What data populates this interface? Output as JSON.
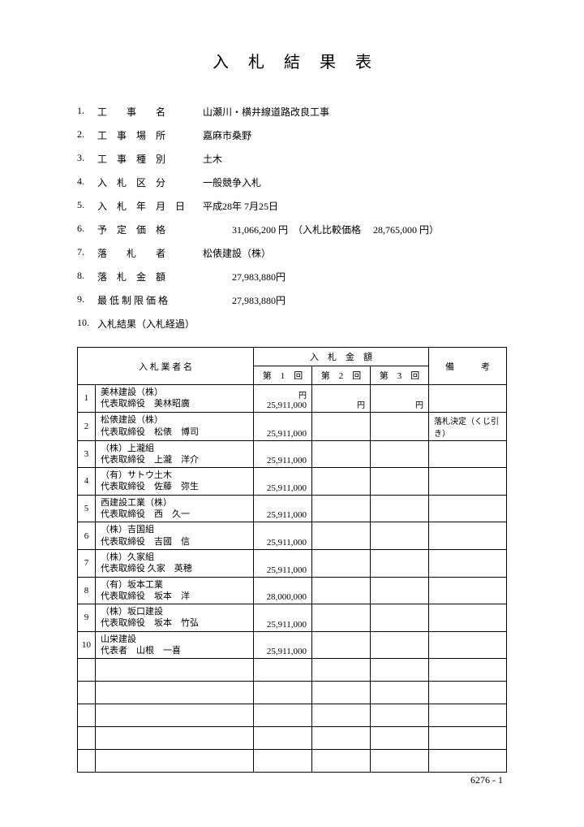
{
  "title": "入札結果表",
  "info": [
    {
      "num": "1.",
      "label": "工　　事　　名",
      "value": "山瀬川・横井線道路改良工事"
    },
    {
      "num": "2.",
      "label": "工　事　場　所",
      "value": "嘉麻市桑野"
    },
    {
      "num": "3.",
      "label": "工　事　種　別",
      "value": "土木"
    },
    {
      "num": "4.",
      "label": "入　札　区　分",
      "value": "一般競争入札"
    },
    {
      "num": "5.",
      "label": "入　札　年　月　日",
      "value": "平成28年 7月25日"
    },
    {
      "num": "6.",
      "label": "予　定　価　格",
      "value": "　　　31,066,200 円　（入札比較価格　 28,765,000 円）"
    },
    {
      "num": "7.",
      "label": "落　　札　　者",
      "value": "松俵建設（株）"
    },
    {
      "num": "8.",
      "label": "落　札　金　額",
      "value": "　　　27,983,880円"
    },
    {
      "num": "9.",
      "label": "最 低 制 限 価 格",
      "value": "　　　27,983,880円"
    },
    {
      "num": "10.",
      "label": "入札結果（入札経過）",
      "value": ""
    }
  ],
  "table": {
    "header_bidder": "入 札 業 者 名",
    "header_amount": "入　札　金　額",
    "header_round1": "第　1　回",
    "header_round2": "第　2　回",
    "header_round3": "第　3　回",
    "header_note": "備　　　考",
    "yen": "円",
    "rows": [
      {
        "n": "1",
        "b1": "美林建設（株）",
        "b2": "代表取締役　美林昭廣",
        "a1": "25,911,000",
        "note": ""
      },
      {
        "n": "2",
        "b1": "松俵建設（株）",
        "b2": "代表取締役　松俵　博司",
        "a1": "25,911,000",
        "note": "落札決定（くじ引き）"
      },
      {
        "n": "3",
        "b1": "（株）上瀧組",
        "b2": "代表取締役　上瀧　洋介",
        "a1": "25,911,000",
        "note": ""
      },
      {
        "n": "4",
        "b1": "（有）サトウ土木",
        "b2": "代表取締役　佐藤　弥生",
        "a1": "25,911,000",
        "note": ""
      },
      {
        "n": "5",
        "b1": "西建設工業（株）",
        "b2": "代表取締役　西　久一",
        "a1": "25,911,000",
        "note": ""
      },
      {
        "n": "6",
        "b1": "（株）吉国組",
        "b2": "代表取締役　吉國　信",
        "a1": "25,911,000",
        "note": ""
      },
      {
        "n": "7",
        "b1": "（株）久家組",
        "b2": "代表取締役 久家　英穂",
        "a1": "25,911,000",
        "note": ""
      },
      {
        "n": "8",
        "b1": "（有）坂本工業",
        "b2": "代表取締役　坂本　洋",
        "a1": "28,000,000",
        "note": ""
      },
      {
        "n": "9",
        "b1": "（株）坂口建設",
        "b2": "代表取締役　坂本　竹弘",
        "a1": "25,911,000",
        "note": ""
      },
      {
        "n": "10",
        "b1": "山栄建設",
        "b2": "代表者　山根　一喜",
        "a1": "25,911,000",
        "note": ""
      }
    ],
    "empty_rows": 5
  },
  "footer": "6276 - 1"
}
